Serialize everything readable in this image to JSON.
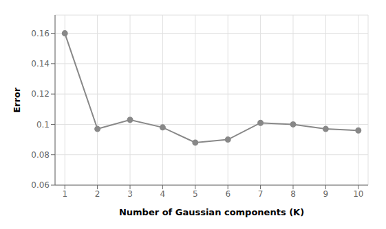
{
  "chart_data": {
    "type": "line",
    "x": [
      1,
      2,
      3,
      4,
      5,
      6,
      7,
      8,
      9,
      10
    ],
    "values": [
      0.16,
      0.097,
      0.103,
      0.098,
      0.088,
      0.09,
      0.101,
      0.1,
      0.097,
      0.096
    ],
    "color": "#888888",
    "marker": "circle",
    "xlabel": "Number of Gaussian components (K)",
    "ylabel": "Error",
    "xlim": [
      0.7,
      10.3
    ],
    "ylim": [
      0.06,
      0.172
    ],
    "xticks": [
      1,
      2,
      3,
      4,
      5,
      6,
      7,
      8,
      9,
      10
    ],
    "yticks": [
      0.06,
      0.08,
      0.1,
      0.12,
      0.14,
      0.16
    ],
    "grid": true
  }
}
